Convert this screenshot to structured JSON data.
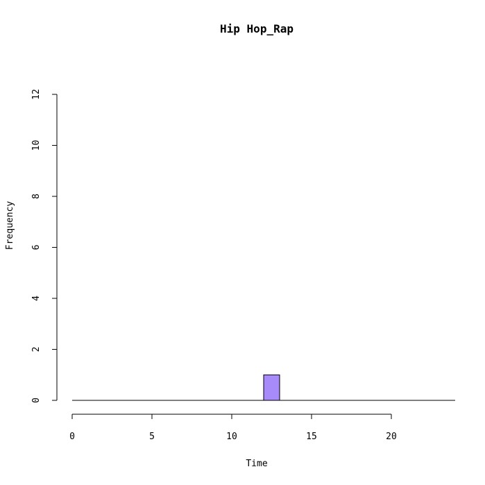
{
  "chart_data": {
    "type": "bar",
    "title": "Hip Hop_Rap",
    "xlabel": "Time",
    "ylabel": "Frequency",
    "xlim": [
      0,
      24
    ],
    "ylim": [
      0,
      12
    ],
    "x_ticks": [
      0,
      5,
      10,
      15,
      20
    ],
    "y_ticks": [
      0,
      2,
      4,
      6,
      8,
      10,
      12
    ],
    "bin_width": 1,
    "bins": [
      {
        "start": 0,
        "end": 1,
        "count": 0
      },
      {
        "start": 1,
        "end": 2,
        "count": 0
      },
      {
        "start": 2,
        "end": 3,
        "count": 0
      },
      {
        "start": 3,
        "end": 4,
        "count": 0
      },
      {
        "start": 4,
        "end": 5,
        "count": 0
      },
      {
        "start": 5,
        "end": 6,
        "count": 0
      },
      {
        "start": 6,
        "end": 7,
        "count": 0
      },
      {
        "start": 7,
        "end": 8,
        "count": 0
      },
      {
        "start": 8,
        "end": 9,
        "count": 0
      },
      {
        "start": 9,
        "end": 10,
        "count": 0
      },
      {
        "start": 10,
        "end": 11,
        "count": 0
      },
      {
        "start": 11,
        "end": 12,
        "count": 0
      },
      {
        "start": 12,
        "end": 13,
        "count": 1
      },
      {
        "start": 13,
        "end": 14,
        "count": 0
      },
      {
        "start": 14,
        "end": 15,
        "count": 0
      },
      {
        "start": 15,
        "end": 16,
        "count": 0
      },
      {
        "start": 16,
        "end": 17,
        "count": 0
      },
      {
        "start": 17,
        "end": 18,
        "count": 0
      },
      {
        "start": 18,
        "end": 19,
        "count": 0
      },
      {
        "start": 19,
        "end": 20,
        "count": 0
      },
      {
        "start": 20,
        "end": 21,
        "count": 0
      },
      {
        "start": 21,
        "end": 22,
        "count": 0
      },
      {
        "start": 22,
        "end": 23,
        "count": 0
      },
      {
        "start": 23,
        "end": 24,
        "count": 0
      }
    ],
    "bar_color": "#a78bfa",
    "grid": false
  }
}
